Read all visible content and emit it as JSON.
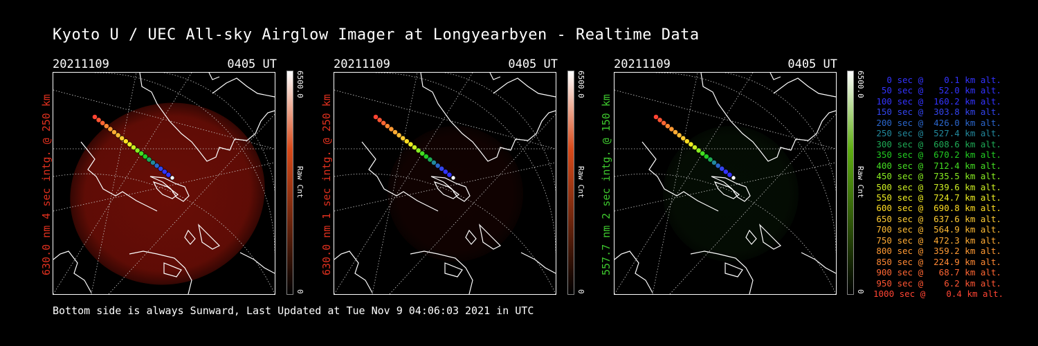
{
  "title": "Kyoto U / UEC All-sky Airglow Imager at Longyearbyen - Realtime Data",
  "footer": "Bottom side is always Sunward, Last Updated at Tue Nov  9 04:06:03 2021 in UTC",
  "panels": [
    {
      "date": "20211109",
      "time": "0405 UT",
      "label": "630.0 nm 4 sec intg. @ 250 km",
      "label_color": "#e0301e",
      "cbar_max": "6500.0",
      "cbar_min": "0",
      "cbar_unit": "Raw Cnt",
      "cbar_color": "#d84a1a",
      "glow_color": "#8c1208",
      "glow_level": 0.75
    },
    {
      "date": "20211109",
      "time": "0405 UT",
      "label": "630.0 nm 1 sec intg. @ 250 km",
      "label_color": "#e0301e",
      "cbar_max": "6500.0",
      "cbar_min": "0",
      "cbar_unit": "Raw Cnt",
      "cbar_color": "#d84a1a",
      "glow_color": "#3a0804",
      "glow_level": 0.3
    },
    {
      "date": "20211109",
      "time": "0405 UT",
      "label": "557.7 nm 2 sec intg. @ 150 km",
      "label_color": "#3ec82e",
      "cbar_max": "6500.0",
      "cbar_min": "0",
      "cbar_unit": "Raw Cnt",
      "cbar_color": "#5fae12",
      "glow_color": "#0f2c0c",
      "glow_level": 0.3
    }
  ],
  "legend": [
    {
      "text": "  0 sec @    0.1 km alt.",
      "color": "#3333ff"
    },
    {
      "text": " 50 sec @   52.0 km alt.",
      "color": "#3333ff"
    },
    {
      "text": "100 sec @  160.2 km alt.",
      "color": "#3333ff"
    },
    {
      "text": "150 sec @  303.8 km alt.",
      "color": "#3344ee"
    },
    {
      "text": "200 sec @  426.0 km alt.",
      "color": "#2a66cc"
    },
    {
      "text": "250 sec @  527.4 km alt.",
      "color": "#22889c"
    },
    {
      "text": "300 sec @  608.6 km alt.",
      "color": "#1eaa55"
    },
    {
      "text": "350 sec @  670.2 km alt.",
      "color": "#22cc22"
    },
    {
      "text": "400 sec @  712.4 km alt.",
      "color": "#44dd22"
    },
    {
      "text": "450 sec @  735.5 km alt.",
      "color": "#88ee22"
    },
    {
      "text": "500 sec @  739.6 km alt.",
      "color": "#ccee22"
    },
    {
      "text": "550 sec @  724.7 km alt.",
      "color": "#eeee22"
    },
    {
      "text": "600 sec @  690.8 km alt.",
      "color": "#ffdd22"
    },
    {
      "text": "650 sec @  637.6 km alt.",
      "color": "#ffcc33"
    },
    {
      "text": "700 sec @  564.9 km alt.",
      "color": "#ffbb33"
    },
    {
      "text": "750 sec @  472.3 km alt.",
      "color": "#ffaa33"
    },
    {
      "text": "800 sec @  359.2 km alt.",
      "color": "#ff9933"
    },
    {
      "text": "850 sec @  224.9 km alt.",
      "color": "#ff8833"
    },
    {
      "text": "900 sec @   68.7 km alt.",
      "color": "#ff6633"
    },
    {
      "text": "950 sec @    6.2 km alt.",
      "color": "#ff5533"
    },
    {
      "text": "1000 sec @    0.4 km alt.",
      "color": "#ff4433"
    }
  ]
}
